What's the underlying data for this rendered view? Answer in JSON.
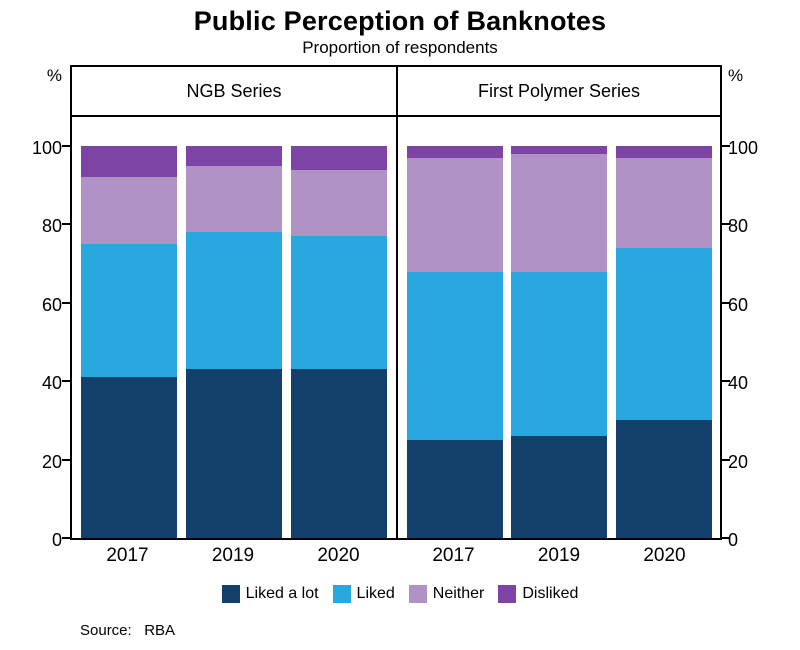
{
  "chart_data": {
    "type": "bar",
    "stacked": true,
    "title": "Public Perception of Banknotes",
    "subtitle": "Proportion of respondents",
    "unit": "%",
    "ylim": [
      0,
      100
    ],
    "yticks": [
      0,
      20,
      40,
      60,
      80,
      100
    ],
    "legend_position": "bottom",
    "legend": [
      {
        "label": "Liked a lot",
        "color": "#12406a"
      },
      {
        "label": "Liked",
        "color": "#29a8e0"
      },
      {
        "label": "Neither",
        "color": "#b192c4"
      },
      {
        "label": "Disliked",
        "color": "#7d44a5"
      }
    ],
    "panels": [
      {
        "title": "NGB Series",
        "categories": [
          "2017",
          "2019",
          "2020"
        ],
        "series": [
          {
            "name": "Liked a lot",
            "values": [
              41,
              43,
              43
            ]
          },
          {
            "name": "Liked",
            "values": [
              34,
              35,
              34
            ]
          },
          {
            "name": "Neither",
            "values": [
              17,
              17,
              17
            ]
          },
          {
            "name": "Disliked",
            "values": [
              8,
              5,
              6
            ]
          }
        ]
      },
      {
        "title": "First Polymer Series",
        "categories": [
          "2017",
          "2019",
          "2020"
        ],
        "series": [
          {
            "name": "Liked a lot",
            "values": [
              25,
              26,
              30
            ]
          },
          {
            "name": "Liked",
            "values": [
              43,
              42,
              44
            ]
          },
          {
            "name": "Neither",
            "values": [
              29,
              30,
              23
            ]
          },
          {
            "name": "Disliked",
            "values": [
              3,
              2,
              3
            ]
          }
        ]
      }
    ],
    "source": "Source:   RBA"
  }
}
